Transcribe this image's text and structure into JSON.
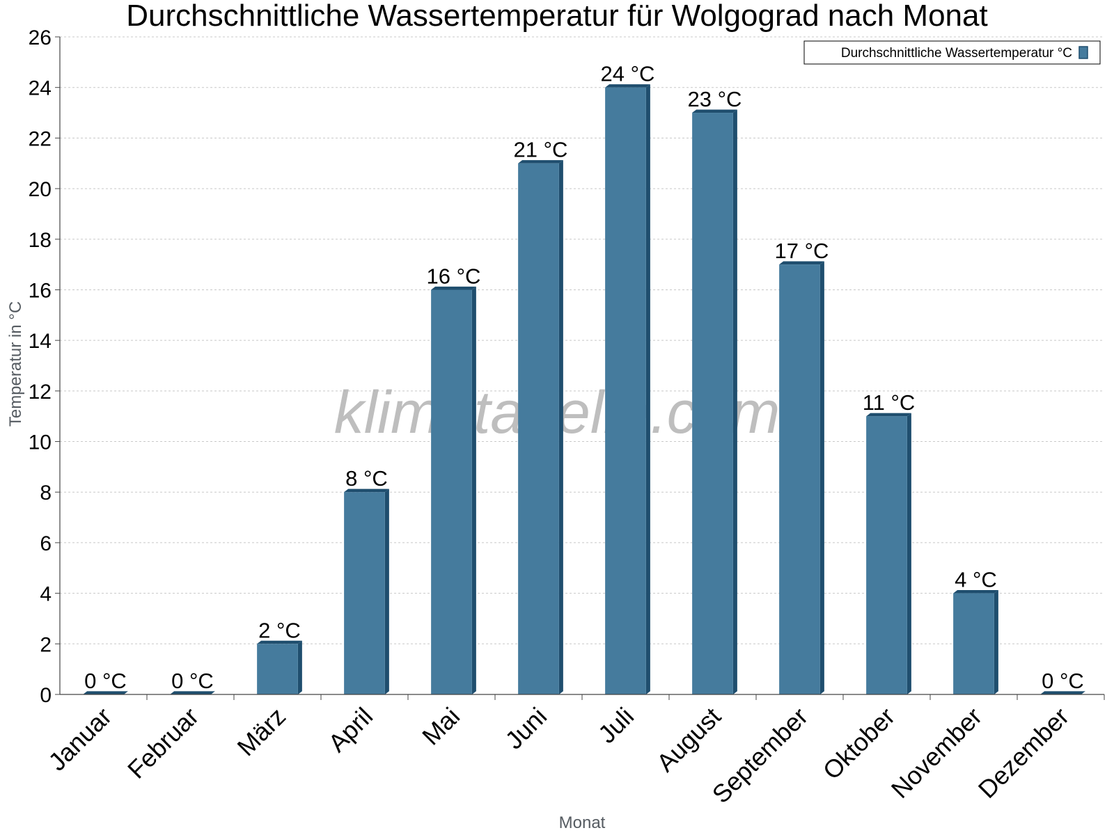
{
  "chart_data": {
    "type": "bar",
    "title": "Durchschnittliche Wassertemperatur für Wolgograd nach Monat",
    "xlabel": "Monat",
    "ylabel": "Temperatur in °C",
    "ylim": [
      0,
      26
    ],
    "yticks": [
      0,
      2,
      4,
      6,
      8,
      10,
      12,
      14,
      16,
      18,
      20,
      22,
      24,
      26
    ],
    "grid": true,
    "legend_position": "top-right",
    "categories": [
      "Januar",
      "Februar",
      "März",
      "April",
      "Mai",
      "Juni",
      "Juli",
      "August",
      "September",
      "Oktober",
      "November",
      "Dezember"
    ],
    "series": [
      {
        "name": "Durchschnittliche Wassertemperatur °C",
        "values": [
          0,
          0,
          2,
          8,
          16,
          21,
          24,
          23,
          17,
          11,
          4,
          0
        ],
        "labels": [
          "0 °C",
          "0 °C",
          "2 °C",
          "8 °C",
          "16 °C",
          "21 °C",
          "24 °C",
          "23 °C",
          "17 °C",
          "11 °C",
          "4 °C",
          "0 °C"
        ],
        "color": "#457b9d",
        "side_color": "#1f4e6e"
      }
    ],
    "watermark": "klimatabelle.com"
  }
}
